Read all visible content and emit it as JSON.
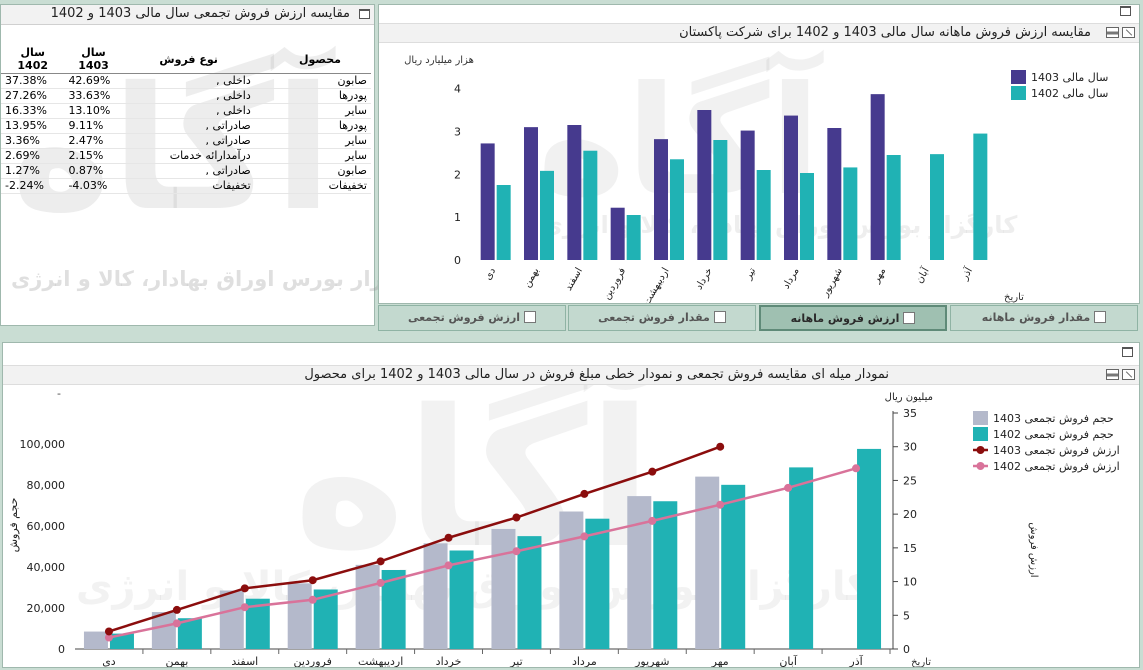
{
  "panel_table": {
    "title": "مقایسه ارزش فروش تجمعی سال مالی 1403 و 1402",
    "headers": {
      "product": "محصول",
      "sales_type": "نوع فروش",
      "year_1403": "سال 1403",
      "year_1402": "سال 1402"
    },
    "rows": [
      {
        "product": "صابون",
        "sales_type": "داخلی ,",
        "y1403": "42.69%",
        "y1402": "37.38%"
      },
      {
        "product": "پودرها",
        "sales_type": "داخلی ,",
        "y1403": "33.63%",
        "y1402": "27.26%"
      },
      {
        "product": "سایر",
        "sales_type": "داخلی ,",
        "y1403": "13.10%",
        "y1402": "16.33%"
      },
      {
        "product": "پودرها",
        "sales_type": "صادراتی ,",
        "y1403": "9.11%",
        "y1402": "13.95%"
      },
      {
        "product": "سایر",
        "sales_type": "صادراتی ,",
        "y1403": "2.47%",
        "y1402": "3.36%"
      },
      {
        "product": "سایر",
        "sales_type": "درآمدارائه خدمات",
        "y1403": "2.15%",
        "y1402": "2.69%"
      },
      {
        "product": "صابون",
        "sales_type": "صادراتی ,",
        "y1403": "0.87%",
        "y1402": "1.27%"
      },
      {
        "product": "تخفیفات",
        "sales_type": "تخفیفات",
        "y1403": "-4.03%",
        "y1402": "-2.24%"
      }
    ]
  },
  "panel_monthly": {
    "title": "مقایسه ارزش فروش ماهانه سال مالی 1403 و 1402 برای شرکت پاکستان"
  },
  "panel_cumulative": {
    "title": "نمودار میله ای مقایسه فروش تجمعی و نمودار خطی مبلغ فروش در سال مالی 1403 و 1402 برای محصول"
  },
  "watermark": {
    "logo": "آگاه",
    "line1": "کارگزار بورس اوراق بهادار، کالا و انرژی"
  },
  "tabs": [
    {
      "label": "ارزش فروش تجمعی",
      "icon": "line-chart-icon",
      "active": false
    },
    {
      "label": "مقدار فروش تجمعی",
      "icon": "line-chart-icon",
      "active": false
    },
    {
      "label": "ارزش فروش ماهانه",
      "icon": "bar-chart-icon",
      "active": true
    },
    {
      "label": "مقدار فروش ماهانه",
      "icon": "bar-chart-icon",
      "active": false
    }
  ],
  "colors": {
    "series_1403_monthly": "#463a8e",
    "series_1402_teal": "#20b2b4",
    "series_1403_cum_bar": "#b4b9cb",
    "line_1403": "#8b0d0d",
    "line_1402": "#d9739a",
    "active_tab": "#9fc0b1"
  },
  "chart_data": [
    {
      "type": "bar",
      "ylabel": "هزار میلیارد ریال",
      "xlabel": "تاریخ",
      "ylim": [
        0,
        4.2
      ],
      "yticks": [
        "0",
        "1",
        "2",
        "3",
        "4"
      ],
      "grid": false,
      "legend_position": "top-right",
      "categories": [
        "دی",
        "بهمن",
        "اسفند",
        "فروردین",
        "اردیبهشت",
        "خرداد",
        "تیر",
        "مرداد",
        "شهریور",
        "مهر",
        "آبان",
        "آذر"
      ],
      "series": [
        {
          "name": "سال مالی 1403",
          "values": [
            2.72,
            3.1,
            3.15,
            1.22,
            2.82,
            3.5,
            3.02,
            3.37,
            3.08,
            3.87,
            null,
            null
          ]
        },
        {
          "name": "سال مالی 1402",
          "values": [
            1.75,
            2.08,
            2.55,
            1.05,
            2.35,
            2.8,
            2.1,
            2.03,
            2.16,
            2.45,
            2.47,
            2.95
          ]
        }
      ]
    },
    {
      "type": "bar",
      "ylabel": "حجم فروش",
      "y2label": "ارزش فروش",
      "y2unit": "میلیون ریال",
      "xlabel": "تاریخ",
      "ylim": [
        0,
        115000
      ],
      "yticks": [
        "0",
        "20,000",
        "40,000",
        "60,000",
        "80,000",
        "100,000"
      ],
      "y2lim": [
        0,
        35
      ],
      "y2ticks": [
        "0",
        "5",
        "10",
        "15",
        "20",
        "25",
        "30",
        "35"
      ],
      "grid": false,
      "legend_position": "top-right",
      "categories": [
        "دی",
        "بهمن",
        "اسفند",
        "فروردین",
        "اردیبهشت",
        "خرداد",
        "تیر",
        "مرداد",
        "شهریور",
        "مهر",
        "آبان",
        "آذر"
      ],
      "series": [
        {
          "name": "حجم فروش تجمعی 1403",
          "kind": "bar",
          "values": [
            8500,
            18000,
            28500,
            32000,
            41000,
            51500,
            58500,
            67000,
            74500,
            84000,
            null,
            null
          ]
        },
        {
          "name": "حجم فروش تجمعی 1402",
          "kind": "bar",
          "values": [
            7500,
            15000,
            24500,
            29000,
            38500,
            48000,
            55000,
            63500,
            72000,
            80000,
            88500,
            97500
          ]
        },
        {
          "name": "ارزش فروش تجمعی 1403",
          "kind": "line",
          "axis": "y2",
          "values": [
            2.6,
            5.8,
            9.0,
            10.2,
            13.0,
            16.5,
            19.5,
            23.0,
            26.3,
            30.0,
            null,
            null
          ]
        },
        {
          "name": "ارزش فروش تجمعی 1402",
          "kind": "line",
          "axis": "y2",
          "values": [
            1.7,
            3.8,
            6.2,
            7.3,
            9.8,
            12.4,
            14.5,
            16.7,
            19.0,
            21.4,
            23.9,
            26.8
          ]
        }
      ]
    }
  ]
}
